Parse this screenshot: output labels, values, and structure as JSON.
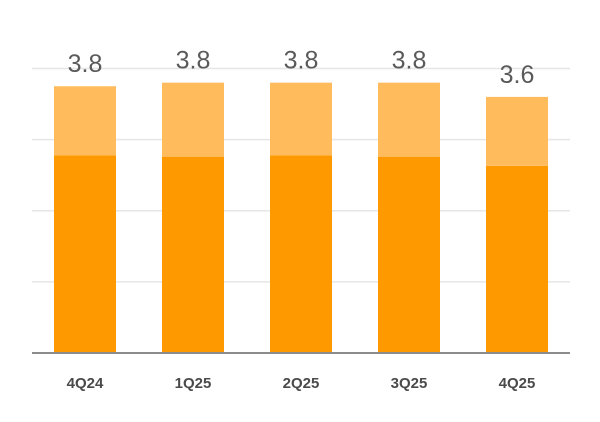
{
  "chart_data": {
    "type": "bar",
    "stacked": true,
    "categories": [
      "4Q24",
      "1Q25",
      "2Q25",
      "3Q25",
      "4Q25"
    ],
    "totals": [
      "3.8",
      "3.8",
      "3.8",
      "3.8",
      "3.6"
    ],
    "series": [
      {
        "values": [
          2.78,
          2.76,
          2.78,
          2.76,
          2.63
        ],
        "color": "#FF9900"
      },
      {
        "values": [
          0.97,
          1.04,
          1.02,
          1.04,
          0.97
        ],
        "color": "#FFBB5C"
      }
    ],
    "ylim": [
      0,
      4.4
    ],
    "grid": true,
    "axis_color": "#8c8c8c",
    "grid_color": "#e6e6e6"
  }
}
